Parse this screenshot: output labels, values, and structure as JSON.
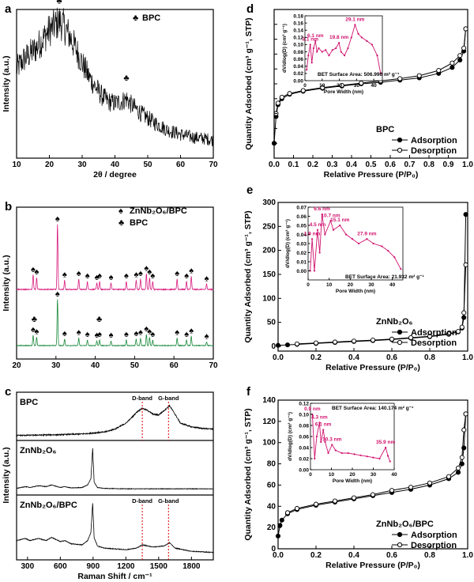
{
  "chart_data": [
    {
      "id": "a",
      "type": "line",
      "panel_label": "a",
      "xlabel": "2θ / degree",
      "ylabel": "Intensity (a.u.)",
      "xlim": [
        10,
        70
      ],
      "xticks": [
        10,
        20,
        30,
        40,
        50,
        60,
        70
      ],
      "legend": [
        {
          "symbol": "♣",
          "name": "BPC"
        }
      ],
      "markers": [
        {
          "x": 23,
          "symbol": "♣"
        },
        {
          "x": 43.5,
          "symbol": "♣"
        }
      ],
      "series": [
        {
          "name": "BPC",
          "color": "#000000",
          "x": [
            10,
            12,
            14,
            16,
            18,
            20,
            22,
            23,
            24,
            26,
            28,
            30,
            32,
            34,
            36,
            38,
            40,
            42,
            43.5,
            45,
            48,
            52,
            56,
            60,
            64,
            68,
            70
          ],
          "y": [
            0.6,
            0.66,
            0.7,
            0.74,
            0.8,
            0.86,
            0.9,
            0.92,
            0.9,
            0.83,
            0.74,
            0.64,
            0.55,
            0.48,
            0.42,
            0.38,
            0.37,
            0.38,
            0.4,
            0.36,
            0.3,
            0.24,
            0.19,
            0.16,
            0.14,
            0.13,
            0.12
          ]
        }
      ]
    },
    {
      "id": "b",
      "type": "line",
      "panel_label": "b",
      "xlabel": "",
      "ylabel": "Intensity (a.u.)",
      "xlim": [
        20,
        70
      ],
      "xticks": [
        20,
        30,
        40,
        50,
        60,
        70
      ],
      "legend": [
        {
          "symbol": "♠",
          "name": "ZnNb₂O₆/BPC"
        },
        {
          "symbol": "♣",
          "name": "BPC"
        }
      ],
      "peaks": [
        24.2,
        25.1,
        30.4,
        32.2,
        35.8,
        38.0,
        40.4,
        41.1,
        44.0,
        47.9,
        50.4,
        51.5,
        53.0,
        53.8,
        54.6,
        60.8,
        63.2,
        64.4,
        68.3
      ],
      "peak_heights": [
        0.22,
        0.18,
        1.0,
        0.14,
        0.16,
        0.12,
        0.1,
        0.12,
        0.1,
        0.12,
        0.14,
        0.16,
        0.24,
        0.18,
        0.12,
        0.16,
        0.12,
        0.2,
        0.08
      ],
      "series": [
        {
          "name": "ZnNb₂O₆/BPC",
          "color": "#d81b7e"
        },
        {
          "name": "BPC",
          "color": "#1a8a3c"
        }
      ]
    },
    {
      "id": "c",
      "type": "line",
      "panel_label": "c",
      "xlabel": "Raman Shift / cm⁻¹",
      "ylabel": "Intensity (a.u.)",
      "xlim": [
        200,
        2000
      ],
      "xticks": [
        300,
        600,
        900,
        1200,
        1500,
        1800
      ],
      "subplots": [
        {
          "name": "BPC",
          "x": [
            200,
            400,
            600,
            800,
            1000,
            1100,
            1200,
            1250,
            1300,
            1350,
            1400,
            1450,
            1500,
            1550,
            1600,
            1650,
            1700,
            1800,
            1900,
            2000
          ],
          "y": [
            0.05,
            0.06,
            0.07,
            0.09,
            0.14,
            0.22,
            0.38,
            0.52,
            0.68,
            0.78,
            0.72,
            0.62,
            0.6,
            0.72,
            0.85,
            0.62,
            0.38,
            0.28,
            0.24,
            0.22
          ],
          "bands": [
            {
              "name": "D-band",
              "x": 1350
            },
            {
              "name": "G-band",
              "x": 1590
            }
          ]
        },
        {
          "name": "ZnNb₂O₆",
          "x": [
            200,
            280,
            320,
            400,
            470,
            520,
            600,
            640,
            700,
            800,
            850,
            880,
            896,
            910,
            940,
            1000,
            1200,
            1500,
            2000
          ],
          "y": [
            0.08,
            0.12,
            0.1,
            0.14,
            0.12,
            0.16,
            0.1,
            0.12,
            0.09,
            0.1,
            0.16,
            0.3,
            1.0,
            0.22,
            0.1,
            0.08,
            0.07,
            0.07,
            0.07
          ]
        },
        {
          "name": "ZnNb₂O₆/BPC",
          "x": [
            200,
            280,
            320,
            400,
            470,
            520,
            600,
            640,
            700,
            800,
            850,
            880,
            896,
            910,
            940,
            1000,
            1200,
            1300,
            1350,
            1450,
            1550,
            1600,
            1650,
            1800,
            2000
          ],
          "y": [
            0.3,
            0.34,
            0.3,
            0.34,
            0.3,
            0.36,
            0.28,
            0.3,
            0.24,
            0.22,
            0.3,
            0.45,
            1.0,
            0.35,
            0.2,
            0.16,
            0.13,
            0.16,
            0.22,
            0.18,
            0.2,
            0.26,
            0.16,
            0.1,
            0.08
          ],
          "bands": [
            {
              "name": "D-band",
              "x": 1350
            },
            {
              "name": "G-band",
              "x": 1590
            }
          ]
        }
      ]
    },
    {
      "id": "d",
      "type": "line",
      "panel_label": "d",
      "xlabel": "Relative Pressure (P/P₀)",
      "ylabel": "Quantity Adsorbed (cm³ g⁻¹, STP)",
      "xlim": [
        0,
        1.0
      ],
      "ylim": [
        0,
        1
      ],
      "xticks": [
        0.0,
        0.1,
        0.2,
        0.3,
        0.4,
        0.5,
        0.6,
        0.7,
        0.8,
        0.9,
        1.0
      ],
      "sample": "BPC",
      "series": [
        {
          "name": "Adsorption",
          "x": [
            0.0,
            0.01,
            0.02,
            0.04,
            0.08,
            0.15,
            0.25,
            0.35,
            0.45,
            0.55,
            0.65,
            0.75,
            0.85,
            0.92,
            0.96,
            0.98,
            0.99
          ],
          "y": [
            0.1,
            0.28,
            0.36,
            0.4,
            0.43,
            0.45,
            0.47,
            0.485,
            0.5,
            0.51,
            0.525,
            0.54,
            0.57,
            0.61,
            0.66,
            0.72,
            0.87
          ]
        },
        {
          "name": "Desorption",
          "x": [
            0.99,
            0.98,
            0.96,
            0.92,
            0.85,
            0.75,
            0.65,
            0.55,
            0.45,
            0.35,
            0.25,
            0.15,
            0.08,
            0.04,
            0.02,
            0.01
          ],
          "y": [
            0.87,
            0.74,
            0.69,
            0.64,
            0.59,
            0.555,
            0.535,
            0.52,
            0.505,
            0.49,
            0.475,
            0.455,
            0.435,
            0.41,
            0.37,
            0.3
          ]
        }
      ],
      "inset": {
        "xlabel": "Pore Width (nm)",
        "ylabel": "dV/dlog(D) (cm³ g⁻¹)",
        "xlim": [
          0,
          45
        ],
        "ylim": [
          0,
          0.18
        ],
        "xticks": [
          0,
          10,
          20,
          30,
          40
        ],
        "yticks": [
          0.0,
          0.02,
          0.04,
          0.06,
          0.08,
          0.1,
          0.12,
          0.14,
          0.16,
          0.18
        ],
        "surface_area": "BET Surface Area:  506.990 m² g⁻¹",
        "peaks": [
          "3.1 nm",
          "6.1 nm",
          "19.8 nm",
          "29.1 nm"
        ],
        "x": [
          1,
          2,
          3.1,
          4,
          5,
          6.1,
          7,
          8,
          10,
          12,
          14,
          16,
          18,
          19.8,
          21,
          23,
          25,
          27,
          29.1,
          31,
          33,
          36,
          39,
          42,
          44
        ],
        "y": [
          0.03,
          0.07,
          0.1,
          0.05,
          0.09,
          0.11,
          0.08,
          0.09,
          0.08,
          0.085,
          0.07,
          0.085,
          0.09,
          0.105,
          0.08,
          0.07,
          0.09,
          0.12,
          0.155,
          0.13,
          0.12,
          0.11,
          0.1,
          0.07,
          0.02
        ]
      }
    },
    {
      "id": "e",
      "type": "line",
      "panel_label": "e",
      "xlabel": "Relative Pressure (P/P₀)",
      "ylabel": "Quantity Adsorbed (cm³ g⁻¹, STP)",
      "xlim": [
        0,
        1.0
      ],
      "ylim": [
        -10,
        300
      ],
      "xticks": [
        0.0,
        0.2,
        0.4,
        0.6,
        0.8,
        1.0
      ],
      "yticks": [
        0,
        50,
        100,
        150,
        200,
        250,
        300
      ],
      "sample": "ZnNb₂O₆",
      "series": [
        {
          "name": "Adsorption",
          "x": [
            0.0,
            0.05,
            0.1,
            0.2,
            0.3,
            0.4,
            0.5,
            0.6,
            0.7,
            0.8,
            0.9,
            0.95,
            0.97,
            0.98,
            0.99
          ],
          "y": [
            2,
            3,
            4,
            6,
            8,
            10,
            12,
            14,
            17,
            20,
            25,
            30,
            38,
            60,
            275
          ]
        },
        {
          "name": "Desorption",
          "x": [
            0.99,
            0.98,
            0.97,
            0.95,
            0.9,
            0.8,
            0.7,
            0.6,
            0.5,
            0.4,
            0.3,
            0.2,
            0.1
          ],
          "y": [
            170,
            70,
            40,
            31,
            26,
            21,
            18,
            15,
            13,
            11,
            9,
            7,
            5
          ]
        }
      ],
      "inset": {
        "xlabel": "Pore Width (nm)",
        "ylabel": "dV/dlog(D) (cm³ g⁻¹)",
        "xlim": [
          0,
          45
        ],
        "ylim": [
          -0.01,
          0.07
        ],
        "xticks": [
          0,
          10,
          20,
          30,
          40
        ],
        "yticks": [
          0.0,
          0.01,
          0.02,
          0.03,
          0.04,
          0.05,
          0.06,
          0.07
        ],
        "surface_area": "BET Surface Area:  21.932 m² g⁻¹",
        "peaks": [
          "1.9 nm",
          "4.5 nm",
          "6.6 nm",
          "10.7 nm",
          "15.1 nm",
          "27.9 nm"
        ],
        "x": [
          1,
          1.9,
          3,
          4.5,
          5.5,
          6.6,
          8,
          10.7,
          12,
          15.1,
          18,
          21,
          24,
          27.9,
          31,
          35,
          38,
          41,
          44
        ],
        "y": [
          0.0,
          0.035,
          0.0,
          0.045,
          0.02,
          0.062,
          0.04,
          0.055,
          0.045,
          0.05,
          0.04,
          0.035,
          0.03,
          0.035,
          0.03,
          0.027,
          0.022,
          0.015,
          0.002
        ]
      }
    },
    {
      "id": "f",
      "type": "line",
      "panel_label": "f",
      "xlabel": "Relative Pressure (P/P₀)",
      "ylabel": "Quantity Adsorbed (cm³ g⁻¹, STP)",
      "xlim": [
        0,
        1.0
      ],
      "ylim": [
        0,
        140
      ],
      "xticks": [
        0.0,
        0.2,
        0.4,
        0.6,
        0.8,
        1.0
      ],
      "yticks": [
        0,
        20,
        40,
        60,
        80,
        100,
        120,
        140
      ],
      "sample": "ZnNb₂O₆/BPC",
      "series": [
        {
          "name": "Adsorption",
          "x": [
            0.0,
            0.01,
            0.02,
            0.05,
            0.1,
            0.2,
            0.3,
            0.4,
            0.5,
            0.6,
            0.7,
            0.8,
            0.9,
            0.95,
            0.97,
            0.98,
            0.99
          ],
          "y": [
            12,
            22,
            27,
            33,
            37,
            41,
            44,
            47,
            50,
            53,
            56,
            60,
            66,
            72,
            80,
            95,
            127
          ]
        },
        {
          "name": "Desorption",
          "x": [
            0.99,
            0.98,
            0.97,
            0.95,
            0.9,
            0.8,
            0.7,
            0.6,
            0.5,
            0.4,
            0.3,
            0.2,
            0.1,
            0.05
          ],
          "y": [
            127,
            112,
            86,
            76,
            68,
            62,
            58,
            55,
            51,
            48,
            45,
            42,
            38,
            34
          ]
        }
      ],
      "inset": {
        "xlabel": "Pore Width (nm)",
        "ylabel": "dV/dlog(D) (cm³ g⁻¹)",
        "xlim": [
          0,
          40
        ],
        "ylim": [
          0,
          0.12
        ],
        "xticks": [
          0,
          10,
          20,
          30,
          40
        ],
        "yticks": [
          0.0,
          0.02,
          0.04,
          0.06,
          0.08,
          0.1,
          0.12
        ],
        "surface_area": "BET Surface Area:  140.174 m² g⁻¹",
        "peaks": [
          "0.9 nm",
          "4.3 nm",
          "6.1 nm",
          "10.3 nm",
          "35.9 nm"
        ],
        "x": [
          0.9,
          2,
          3,
          4.3,
          5,
          6.1,
          7,
          8.5,
          10.3,
          12,
          15,
          18,
          21,
          24,
          27,
          30,
          33,
          35.9,
          37,
          38
        ],
        "y": [
          0.1,
          0.02,
          0.06,
          0.085,
          0.05,
          0.072,
          0.05,
          0.03,
          0.045,
          0.035,
          0.03,
          0.03,
          0.028,
          0.026,
          0.024,
          0.022,
          0.02,
          0.04,
          0.025,
          0.015
        ]
      }
    }
  ]
}
